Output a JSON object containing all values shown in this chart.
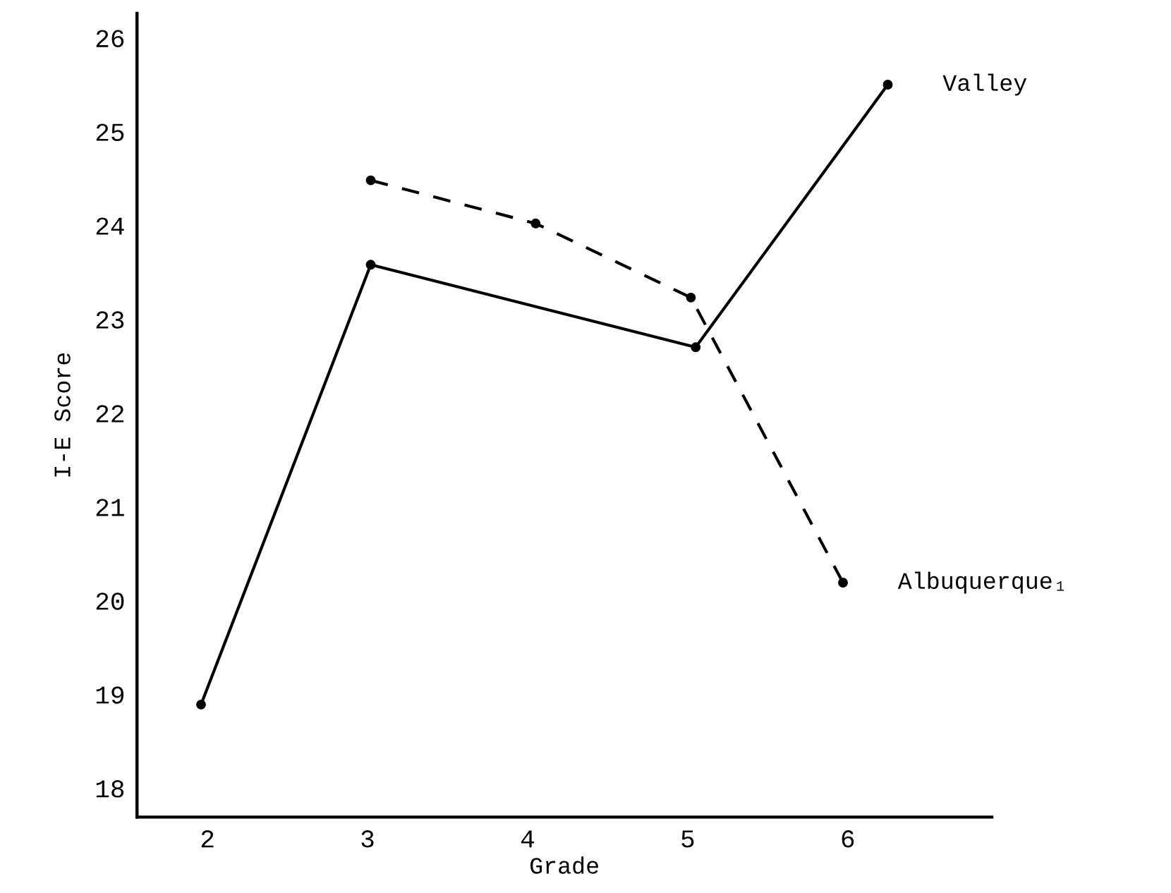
{
  "chart_data": {
    "type": "line",
    "xlabel": "Grade",
    "ylabel": "I-E Score",
    "xlim": [
      1.56,
      6.9
    ],
    "xticks": [
      2,
      3,
      4,
      5,
      6
    ],
    "ylim": [
      17.69,
      26.26
    ],
    "yticks": [
      18,
      19,
      20,
      21,
      22,
      23,
      24,
      25,
      26
    ],
    "grid": false,
    "legend": false,
    "marker": "circle",
    "series": [
      {
        "name": "Valley",
        "color": "#000000",
        "line_style": "solid",
        "x": [
          1.96,
          3.02,
          5.05,
          6.25
        ],
        "values": [
          18.89,
          23.58,
          22.7,
          25.5
        ]
      },
      {
        "name": "Albuquerque₁",
        "color": "#000000",
        "line_style": "dashed",
        "x": [
          3.02,
          4.05,
          5.02,
          5.97
        ],
        "values": [
          24.48,
          24.02,
          23.23,
          20.19
        ]
      }
    ]
  }
}
